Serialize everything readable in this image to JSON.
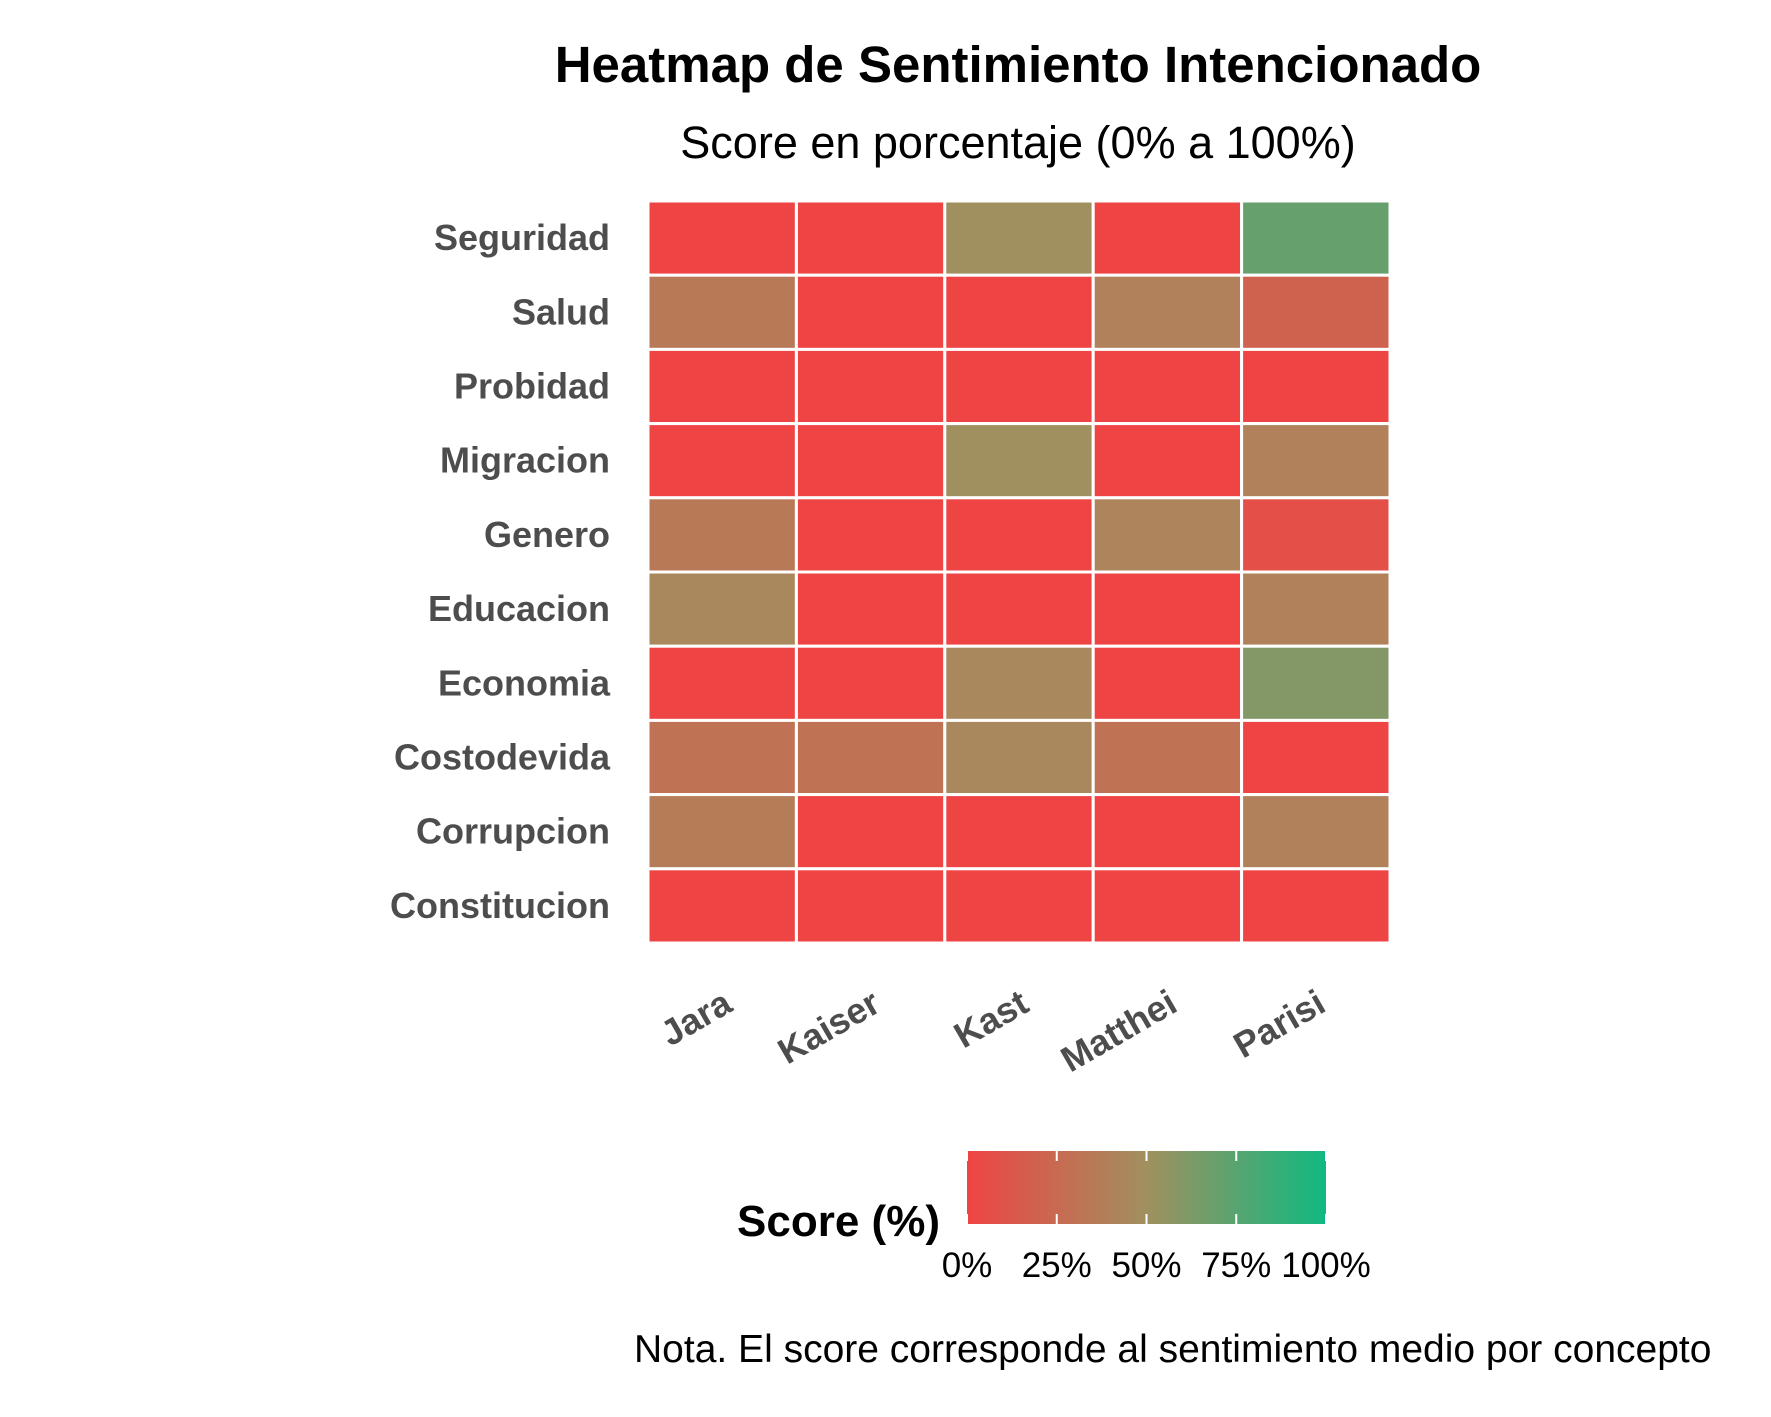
{
  "chart_data": {
    "type": "heatmap",
    "title": "Heatmap de Sentimiento Intencionado",
    "subtitle": "Score en porcentaje (0% a 100%)",
    "x_categories": [
      "Jara",
      "Kaiser",
      "Kast",
      "Matthei",
      "Parisi"
    ],
    "y_categories": [
      "Seguridad",
      "Salud",
      "Probidad",
      "Migracion",
      "Genero",
      "Educacion",
      "Economia",
      "Costodevida",
      "Corrupcion",
      "Constitucion"
    ],
    "values": [
      [
        0,
        0,
        50,
        0,
        70
      ],
      [
        35,
        0,
        0,
        40,
        20
      ],
      [
        0,
        0,
        0,
        0,
        0
      ],
      [
        0,
        0,
        50,
        0,
        40
      ],
      [
        35,
        0,
        0,
        42,
        7
      ],
      [
        45,
        0,
        0,
        0,
        40
      ],
      [
        0,
        0,
        45,
        0,
        60
      ],
      [
        30,
        30,
        45,
        30,
        0
      ],
      [
        37,
        0,
        0,
        0,
        40
      ],
      [
        0,
        0,
        0,
        0,
        0
      ]
    ],
    "colorscale": {
      "low": "#ef4444",
      "mid": "#a0905f",
      "high": "#10b981",
      "domain": [
        0,
        100
      ]
    },
    "legend": {
      "title": "Score (%)",
      "ticks": [
        "0%",
        "25%",
        "50%",
        "75%",
        "100%"
      ],
      "position": "bottom"
    },
    "note": "Nota. El score corresponde al sentimiento medio por concepto"
  }
}
